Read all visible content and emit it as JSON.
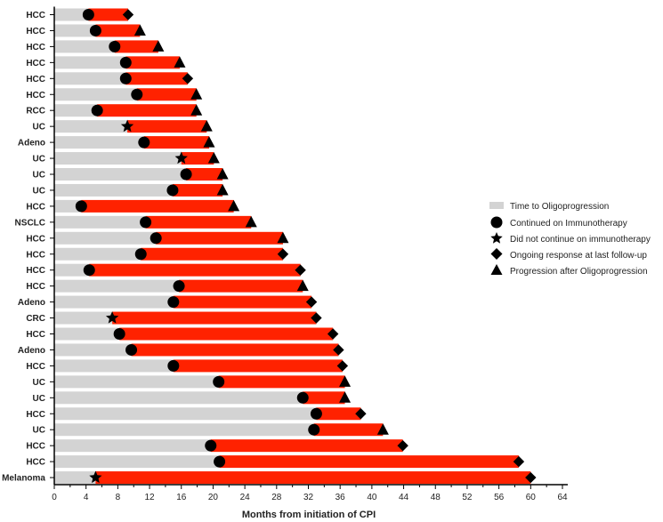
{
  "colors": {
    "oligo": "#d3d3d3",
    "post": "#ff2200",
    "marker": "#000000",
    "axis": "#000000"
  },
  "chart_data": {
    "type": "bar",
    "orientation": "horizontal-swimmer",
    "xlabel": "Months from initiation of CPI",
    "xlim": [
      0,
      64
    ],
    "xticks": [
      0,
      4,
      8,
      12,
      16,
      20,
      24,
      28,
      32,
      36,
      40,
      44,
      48,
      52,
      56,
      60,
      64
    ],
    "legend": {
      "placement": "right",
      "oligo": "Time to Oligoprogression",
      "circle": "Continued on Immunotherapy",
      "star": "Did not continue on immunotherapy",
      "diamond": "Ongoing response at last follow-up",
      "triangle": "Progression after Oligoprogression"
    },
    "patients": [
      {
        "label": "HCC",
        "oligo": 4.3,
        "total": 9.3,
        "start": "circle",
        "end": "diamond"
      },
      {
        "label": "HCC",
        "oligo": 5.2,
        "total": 10.8,
        "start": "circle",
        "end": "triangle"
      },
      {
        "label": "HCC",
        "oligo": 7.6,
        "total": 13.1,
        "start": "circle",
        "end": "triangle"
      },
      {
        "label": "HCC",
        "oligo": 9.0,
        "total": 15.8,
        "start": "circle",
        "end": "triangle"
      },
      {
        "label": "HCC",
        "oligo": 9.0,
        "total": 16.8,
        "start": "circle",
        "end": "diamond"
      },
      {
        "label": "HCC",
        "oligo": 10.4,
        "total": 17.9,
        "start": "circle",
        "end": "triangle"
      },
      {
        "label": "RCC",
        "oligo": 5.4,
        "total": 17.9,
        "start": "circle",
        "end": "triangle"
      },
      {
        "label": "UC",
        "oligo": 9.2,
        "total": 19.2,
        "start": "star",
        "end": "triangle"
      },
      {
        "label": "Adeno",
        "oligo": 11.3,
        "total": 19.5,
        "start": "circle",
        "end": "triangle"
      },
      {
        "label": "UC",
        "oligo": 16.0,
        "total": 20.1,
        "start": "star",
        "end": "triangle"
      },
      {
        "label": "UC",
        "oligo": 16.6,
        "total": 21.2,
        "start": "circle",
        "end": "triangle"
      },
      {
        "label": "UC",
        "oligo": 14.9,
        "total": 21.2,
        "start": "circle",
        "end": "triangle"
      },
      {
        "label": "HCC",
        "oligo": 3.4,
        "total": 22.6,
        "start": "circle",
        "end": "triangle"
      },
      {
        "label": "NSCLC",
        "oligo": 11.5,
        "total": 24.8,
        "start": "circle",
        "end": "triangle"
      },
      {
        "label": "HCC",
        "oligo": 12.8,
        "total": 28.8,
        "start": "circle",
        "end": "triangle"
      },
      {
        "label": "HCC",
        "oligo": 10.9,
        "total": 28.8,
        "start": "circle",
        "end": "diamond"
      },
      {
        "label": "HCC",
        "oligo": 4.4,
        "total": 31.0,
        "start": "circle",
        "end": "diamond"
      },
      {
        "label": "HCC",
        "oligo": 15.7,
        "total": 31.3,
        "start": "circle",
        "end": "triangle"
      },
      {
        "label": "Adeno",
        "oligo": 15.0,
        "total": 32.4,
        "start": "circle",
        "end": "diamond"
      },
      {
        "label": "CRC",
        "oligo": 7.3,
        "total": 33.0,
        "start": "star",
        "end": "diamond"
      },
      {
        "label": "HCC",
        "oligo": 8.2,
        "total": 35.1,
        "start": "circle",
        "end": "diamond"
      },
      {
        "label": "Adeno",
        "oligo": 9.7,
        "total": 35.8,
        "start": "circle",
        "end": "diamond"
      },
      {
        "label": "HCC",
        "oligo": 15.0,
        "total": 36.3,
        "start": "circle",
        "end": "diamond"
      },
      {
        "label": "UC",
        "oligo": 20.7,
        "total": 36.6,
        "start": "circle",
        "end": "triangle"
      },
      {
        "label": "UC",
        "oligo": 31.3,
        "total": 36.6,
        "start": "circle",
        "end": "triangle"
      },
      {
        "label": "HCC",
        "oligo": 33.0,
        "total": 38.6,
        "start": "circle",
        "end": "diamond"
      },
      {
        "label": "UC",
        "oligo": 32.7,
        "total": 41.4,
        "start": "circle",
        "end": "triangle"
      },
      {
        "label": "HCC",
        "oligo": 19.7,
        "total": 43.9,
        "start": "circle",
        "end": "diamond"
      },
      {
        "label": "HCC",
        "oligo": 20.8,
        "total": 58.5,
        "start": "circle",
        "end": "diamond"
      },
      {
        "label": "Melanoma",
        "oligo": 5.2,
        "total": 60.0,
        "start": "star",
        "end": "diamond"
      }
    ]
  }
}
